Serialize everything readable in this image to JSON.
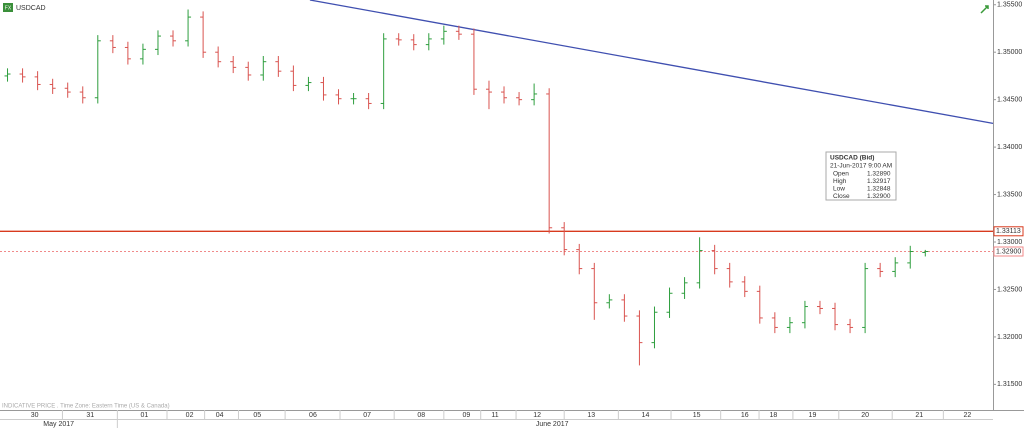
{
  "chart_data": {
    "type": "ohlc",
    "symbol": "USDCAD",
    "footnote": "INDICATIVE PRICE . Time Zone: Eastern Time (US & Canada)",
    "up_color": "#2e9e3e",
    "down_color": "#d9534f",
    "xlim": [
      0,
      66
    ],
    "ylim": [
      1.3123,
      1.3555
    ],
    "yticks": [
      {
        "value": 1.355,
        "label": "1.35500"
      },
      {
        "value": 1.35,
        "label": "1.35000"
      },
      {
        "value": 1.345,
        "label": "1.34500"
      },
      {
        "value": 1.34,
        "label": "1.34000"
      },
      {
        "value": 1.335,
        "label": "1.33500"
      },
      {
        "value": 1.33,
        "label": "1.33000"
      },
      {
        "value": 1.325,
        "label": "1.32500"
      },
      {
        "value": 1.32,
        "label": "1.32000"
      },
      {
        "value": 1.315,
        "label": "1.31500"
      }
    ],
    "xticks": [
      {
        "value": 2.3,
        "label": "30"
      },
      {
        "value": 6.0,
        "label": "31"
      },
      {
        "value": 9.6,
        "label": "01"
      },
      {
        "value": 12.6,
        "label": "02"
      },
      {
        "value": 14.6,
        "label": "04"
      },
      {
        "value": 17.1,
        "label": "05"
      },
      {
        "value": 20.8,
        "label": "06"
      },
      {
        "value": 24.4,
        "label": "07"
      },
      {
        "value": 28.0,
        "label": "08"
      },
      {
        "value": 31.0,
        "label": "09"
      },
      {
        "value": 32.9,
        "label": "11"
      },
      {
        "value": 35.7,
        "label": "12"
      },
      {
        "value": 39.3,
        "label": "13"
      },
      {
        "value": 42.9,
        "label": "14"
      },
      {
        "value": 46.3,
        "label": "15"
      },
      {
        "value": 49.5,
        "label": "16"
      },
      {
        "value": 51.4,
        "label": "18"
      },
      {
        "value": 54.0,
        "label": "19"
      },
      {
        "value": 57.5,
        "label": "20"
      },
      {
        "value": 61.1,
        "label": "21"
      },
      {
        "value": 64.3,
        "label": "22"
      }
    ],
    "months": [
      {
        "value": 3.9,
        "label": "May 2017"
      },
      {
        "value": 36.7,
        "label": "June 2017"
      }
    ],
    "open": [
      1.3475,
      1.3477,
      1.3474,
      1.3466,
      1.3462,
      1.3458,
      1.3452,
      1.3512,
      1.3505,
      1.3493,
      1.3503,
      1.3517,
      1.3512,
      1.3537,
      1.35,
      1.349,
      1.3484,
      1.3476,
      1.349,
      1.348,
      1.3465,
      1.3468,
      1.3455,
      1.3451,
      1.3451,
      1.3446,
      1.3514,
      1.3513,
      1.3508,
      1.3514,
      1.3522,
      1.3519,
      1.3461,
      1.3458,
      1.3452,
      1.345,
      1.3456,
      1.3315,
      1.3292,
      1.3272,
      1.3236,
      1.3239,
      1.3222,
      1.3194,
      1.3226,
      1.3246,
      1.3257,
      1.3291,
      1.3272,
      1.3258,
      1.3248,
      1.322,
      1.321,
      1.3215,
      1.3232,
      1.323,
      1.3213,
      1.321,
      1.3272,
      1.3269,
      1.3278,
      1.3289
    ],
    "high": [
      1.3483,
      1.3483,
      1.348,
      1.3472,
      1.3468,
      1.3464,
      1.3518,
      1.3518,
      1.3511,
      1.3509,
      1.3523,
      1.3523,
      1.3545,
      1.3543,
      1.3506,
      1.3496,
      1.349,
      1.3496,
      1.3496,
      1.3486,
      1.3474,
      1.3474,
      1.3461,
      1.3457,
      1.3457,
      1.352,
      1.352,
      1.3519,
      1.352,
      1.3528,
      1.3528,
      1.3525,
      1.347,
      1.3464,
      1.3458,
      1.3467,
      1.3462,
      1.3321,
      1.3298,
      1.3278,
      1.3245,
      1.3245,
      1.3228,
      1.3232,
      1.3252,
      1.3263,
      1.3305,
      1.3297,
      1.3278,
      1.3264,
      1.3254,
      1.3226,
      1.3221,
      1.3238,
      1.3238,
      1.3236,
      1.3219,
      1.3278,
      1.3278,
      1.3284,
      1.3296,
      1.32917
    ],
    "low": [
      1.3469,
      1.3468,
      1.346,
      1.3456,
      1.3452,
      1.3446,
      1.3446,
      1.3499,
      1.3487,
      1.3487,
      1.3497,
      1.3506,
      1.3506,
      1.3494,
      1.3484,
      1.3478,
      1.347,
      1.347,
      1.3474,
      1.3459,
      1.3459,
      1.3449,
      1.3445,
      1.3445,
      1.344,
      1.344,
      1.3507,
      1.3502,
      1.3502,
      1.3508,
      1.3513,
      1.3455,
      1.344,
      1.3446,
      1.3444,
      1.3444,
      1.3309,
      1.3286,
      1.3266,
      1.3218,
      1.323,
      1.3216,
      1.317,
      1.3188,
      1.322,
      1.324,
      1.3251,
      1.3266,
      1.3252,
      1.3242,
      1.3214,
      1.3204,
      1.3204,
      1.3209,
      1.3224,
      1.3207,
      1.3204,
      1.3204,
      1.3263,
      1.3263,
      1.3272,
      1.32848
    ],
    "close": [
      1.3477,
      1.3474,
      1.3466,
      1.3462,
      1.3458,
      1.3452,
      1.3512,
      1.3505,
      1.3493,
      1.3503,
      1.3517,
      1.3512,
      1.3537,
      1.35,
      1.349,
      1.3484,
      1.3476,
      1.349,
      1.348,
      1.3465,
      1.3468,
      1.3455,
      1.3451,
      1.3451,
      1.3446,
      1.3514,
      1.3513,
      1.3508,
      1.3514,
      1.3522,
      1.3519,
      1.3461,
      1.3458,
      1.3452,
      1.345,
      1.3456,
      1.3315,
      1.3292,
      1.3272,
      1.3236,
      1.3239,
      1.3222,
      1.3194,
      1.3226,
      1.3246,
      1.3257,
      1.3291,
      1.3272,
      1.3258,
      1.3248,
      1.322,
      1.321,
      1.3215,
      1.3232,
      1.323,
      1.3213,
      1.321,
      1.3272,
      1.3269,
      1.3278,
      1.329,
      1.329
    ],
    "levels": [
      {
        "value": 1.33113,
        "label": "1.33113",
        "color": "#d83a1e",
        "dash": false
      },
      {
        "value": 1.329,
        "label": "1.32900",
        "color": "#f08a8a",
        "dash": true
      }
    ],
    "trendline": {
      "x": [
        20.6,
        66
      ],
      "y": [
        1.3555,
        1.3425
      ],
      "color": "#3f4fb0"
    },
    "tooltip": {
      "title": "USDCAD (Bid)",
      "time": "21-Jun-2017 9:00 AM",
      "rows": [
        [
          "Open",
          "1.32890"
        ],
        [
          "High",
          "1.32917"
        ],
        [
          "Low",
          "1.32848"
        ],
        [
          "Close",
          "1.32900"
        ]
      ]
    }
  }
}
